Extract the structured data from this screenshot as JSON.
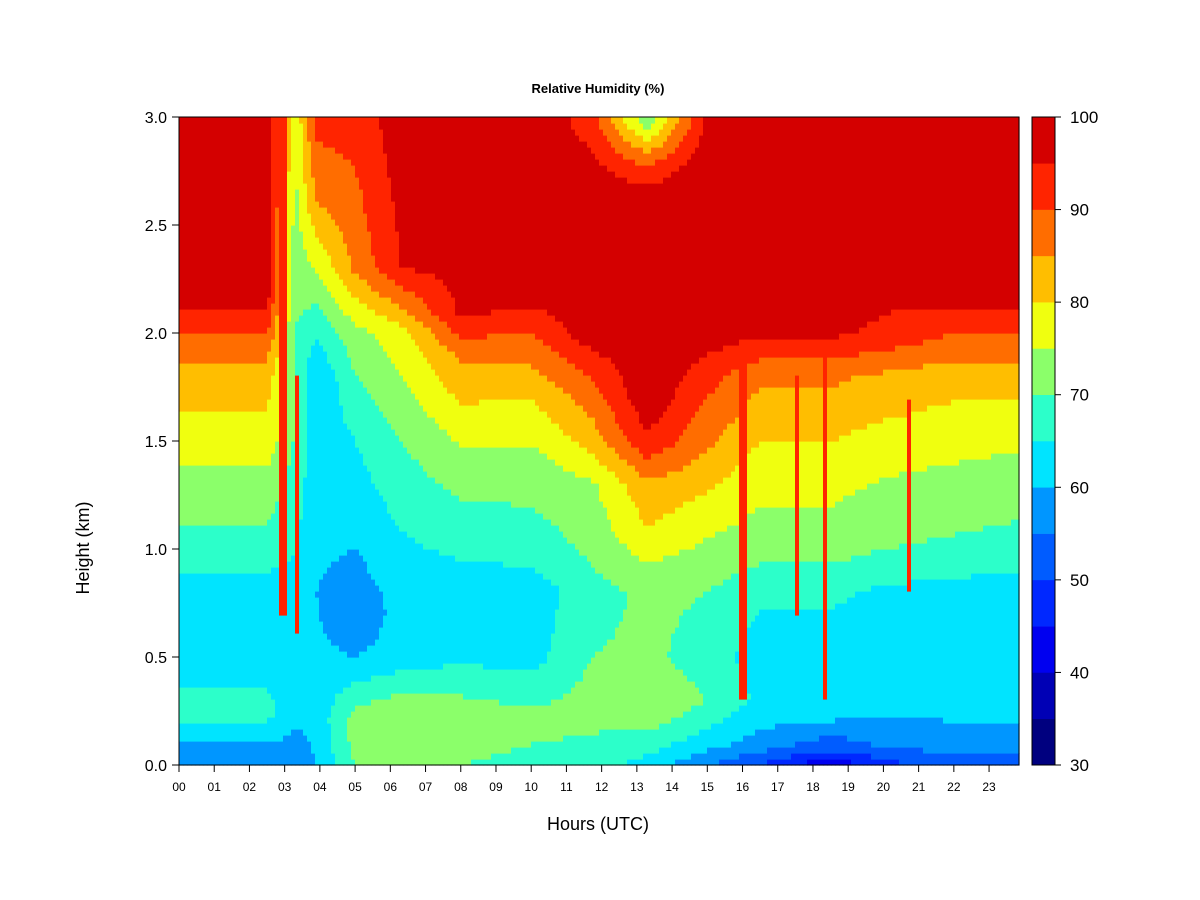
{
  "chart_data": {
    "type": "heatmap",
    "title": "Relative Humidity (%)",
    "xlabel": "Hours (UTC)",
    "ylabel": "Height (km)",
    "x_ticks": [
      "00",
      "01",
      "02",
      "03",
      "04",
      "05",
      "06",
      "07",
      "08",
      "09",
      "10",
      "11",
      "12",
      "13",
      "14",
      "15",
      "16",
      "17",
      "18",
      "19",
      "20",
      "21",
      "22",
      "23"
    ],
    "y_ticks": [
      "0.0",
      "0.5",
      "1.0",
      "1.5",
      "2.0",
      "2.5",
      "3.0"
    ],
    "xlim": [
      0,
      23.85
    ],
    "ylim": [
      0,
      3.0
    ],
    "colorbar": {
      "ticks": [
        "30",
        "40",
        "50",
        "60",
        "70",
        "80",
        "90",
        "100"
      ],
      "levels": [
        30,
        35,
        40,
        45,
        50,
        55,
        60,
        65,
        70,
        75,
        80,
        85,
        90,
        95,
        100
      ],
      "colors": [
        "#00007f",
        "#0000b5",
        "#0000f0",
        "#0028ff",
        "#005cff",
        "#0096ff",
        "#00e4ff",
        "#2cffca",
        "#8bff6a",
        "#f0ff0f",
        "#ffbe00",
        "#ff6d00",
        "#ff2400",
        "#d40000",
        "#800000"
      ]
    },
    "profiles": [
      {
        "hour": 0,
        "rh": [
          [
            0,
            58
          ],
          [
            0.1,
            60
          ],
          [
            0.25,
            67
          ],
          [
            0.5,
            62
          ],
          [
            0.8,
            62
          ],
          [
            1.0,
            68
          ],
          [
            1.3,
            73
          ],
          [
            1.5,
            78
          ],
          [
            1.8,
            82
          ],
          [
            2.0,
            90
          ],
          [
            2.2,
            98
          ],
          [
            3.0,
            100
          ]
        ]
      },
      {
        "hour": 2.5,
        "rh": [
          [
            0,
            58
          ],
          [
            0.1,
            60
          ],
          [
            0.25,
            67
          ],
          [
            0.5,
            62
          ],
          [
            0.8,
            62
          ],
          [
            1.0,
            68
          ],
          [
            1.3,
            73
          ],
          [
            1.5,
            78
          ],
          [
            1.8,
            82
          ],
          [
            2.0,
            90
          ],
          [
            2.2,
            98
          ],
          [
            3.0,
            100
          ]
        ]
      },
      {
        "hour": 3.3,
        "rh": [
          [
            0,
            57
          ],
          [
            0.3,
            62
          ],
          [
            0.8,
            63
          ],
          [
            1.2,
            67
          ],
          [
            1.6,
            70
          ],
          [
            2.0,
            70
          ],
          [
            2.5,
            73
          ],
          [
            3.0,
            76
          ]
        ]
      },
      {
        "hour": 3.9,
        "rh": [
          [
            0,
            60
          ],
          [
            0.3,
            62
          ],
          [
            0.8,
            60
          ],
          [
            1.2,
            62
          ],
          [
            1.8,
            60
          ],
          [
            2.2,
            72
          ],
          [
            2.6,
            85
          ],
          [
            3.0,
            92
          ]
        ]
      },
      {
        "hour": 5.0,
        "rh": [
          [
            0,
            70
          ],
          [
            0.2,
            73
          ],
          [
            0.5,
            60
          ],
          [
            0.7,
            56
          ],
          [
            1.0,
            60
          ],
          [
            1.5,
            65
          ],
          [
            2.0,
            73
          ],
          [
            2.3,
            86
          ],
          [
            3.0,
            92
          ]
        ]
      },
      {
        "hour": 6.3,
        "rh": [
          [
            0,
            72
          ],
          [
            0.25,
            74
          ],
          [
            0.5,
            62
          ],
          [
            0.8,
            62
          ],
          [
            1.0,
            64
          ],
          [
            1.5,
            70
          ],
          [
            2.0,
            78
          ],
          [
            2.3,
            95
          ],
          [
            3.0,
            98
          ]
        ]
      },
      {
        "hour": 8.0,
        "rh": [
          [
            0,
            70
          ],
          [
            0.2,
            74
          ],
          [
            0.5,
            64
          ],
          [
            0.8,
            62
          ],
          [
            1.0,
            66
          ],
          [
            1.4,
            73
          ],
          [
            1.6,
            78
          ],
          [
            1.9,
            86
          ],
          [
            2.1,
            96
          ],
          [
            3.0,
            100
          ]
        ]
      },
      {
        "hour": 10.0,
        "rh": [
          [
            0,
            68
          ],
          [
            0.2,
            72
          ],
          [
            0.5,
            63
          ],
          [
            0.8,
            62
          ],
          [
            1.0,
            67
          ],
          [
            1.4,
            73
          ],
          [
            1.7,
            80
          ],
          [
            2.0,
            90
          ],
          [
            2.2,
            98
          ],
          [
            3.0,
            100
          ]
        ]
      },
      {
        "hour": 11.7,
        "rh": [
          [
            0,
            67
          ],
          [
            0.25,
            72
          ],
          [
            0.5,
            70
          ],
          [
            0.8,
            68
          ],
          [
            1.0,
            71
          ],
          [
            1.3,
            74
          ],
          [
            1.5,
            82
          ],
          [
            1.8,
            90
          ],
          [
            2.0,
            98
          ],
          [
            2.6,
            100
          ],
          [
            2.8,
            96
          ],
          [
            3.0,
            92
          ]
        ]
      },
      {
        "hour": 13.3,
        "rh": [
          [
            0,
            63
          ],
          [
            0.25,
            74
          ],
          [
            0.5,
            71
          ],
          [
            0.8,
            71
          ],
          [
            1.1,
            80
          ],
          [
            1.3,
            84
          ],
          [
            1.5,
            94
          ],
          [
            1.7,
            99
          ],
          [
            2.6,
            100
          ],
          [
            2.8,
            88
          ],
          [
            3.0,
            70
          ]
        ]
      },
      {
        "hour": 15.0,
        "rh": [
          [
            0,
            55
          ],
          [
            0.1,
            62
          ],
          [
            0.3,
            70
          ],
          [
            0.5,
            68
          ],
          [
            0.8,
            70
          ],
          [
            1.1,
            76
          ],
          [
            1.5,
            86
          ],
          [
            1.8,
            92
          ],
          [
            2.0,
            98
          ],
          [
            2.7,
            100
          ],
          [
            3.0,
            96
          ]
        ]
      },
      {
        "hour": 16.5,
        "rh": [
          [
            0,
            50
          ],
          [
            0.1,
            58
          ],
          [
            0.3,
            64
          ],
          [
            0.5,
            62
          ],
          [
            0.8,
            66
          ],
          [
            1.0,
            72
          ],
          [
            1.4,
            78
          ],
          [
            1.8,
            86
          ],
          [
            2.0,
            96
          ],
          [
            3.0,
            100
          ]
        ]
      },
      {
        "hour": 18.5,
        "rh": [
          [
            0,
            40
          ],
          [
            0.07,
            50
          ],
          [
            0.2,
            60
          ],
          [
            0.5,
            62
          ],
          [
            0.8,
            66
          ],
          [
            1.0,
            72
          ],
          [
            1.4,
            78
          ],
          [
            1.8,
            86
          ],
          [
            2.0,
            96
          ],
          [
            3.0,
            100
          ]
        ]
      },
      {
        "hour": 20.0,
        "rh": [
          [
            0,
            48
          ],
          [
            0.1,
            56
          ],
          [
            0.3,
            62
          ],
          [
            0.5,
            61
          ],
          [
            0.8,
            64
          ],
          [
            1.0,
            70
          ],
          [
            1.4,
            76
          ],
          [
            1.8,
            84
          ],
          [
            2.0,
            94
          ],
          [
            2.5,
            100
          ],
          [
            2.8,
            97
          ],
          [
            3.0,
            96
          ]
        ]
      },
      {
        "hour": 22.0,
        "rh": [
          [
            0,
            52
          ],
          [
            0.1,
            58
          ],
          [
            0.3,
            62
          ],
          [
            0.5,
            60
          ],
          [
            0.8,
            63
          ],
          [
            1.0,
            69
          ],
          [
            1.4,
            75
          ],
          [
            1.8,
            82
          ],
          [
            2.0,
            90
          ],
          [
            2.2,
            98
          ],
          [
            3.0,
            97
          ]
        ]
      },
      {
        "hour": 23.85,
        "rh": [
          [
            0,
            52
          ],
          [
            0.1,
            58
          ],
          [
            0.3,
            62
          ],
          [
            0.5,
            60
          ],
          [
            0.8,
            62
          ],
          [
            1.0,
            68
          ],
          [
            1.4,
            74
          ],
          [
            1.8,
            82
          ],
          [
            2.0,
            90
          ],
          [
            2.2,
            98
          ],
          [
            3.0,
            97
          ]
        ]
      }
    ],
    "vertical_streaks": [
      {
        "hour": 2.95,
        "rh_low": 92,
        "from_km": 0.7,
        "to_km": 3.0
      },
      {
        "hour": 3.35,
        "rh_low": 94,
        "from_km": 0.6,
        "to_km": 1.8
      },
      {
        "hour": 16.0,
        "rh_low": 92,
        "from_km": 0.3,
        "to_km": 2.0
      },
      {
        "hour": 17.55,
        "rh_low": 92,
        "from_km": 0.7,
        "to_km": 1.8
      },
      {
        "hour": 18.35,
        "rh_low": 94,
        "from_km": 0.3,
        "to_km": 2.0
      },
      {
        "hour": 20.7,
        "rh_low": 90,
        "from_km": 0.8,
        "to_km": 1.7
      }
    ],
    "grid": false,
    "legend": "colorbar right"
  }
}
